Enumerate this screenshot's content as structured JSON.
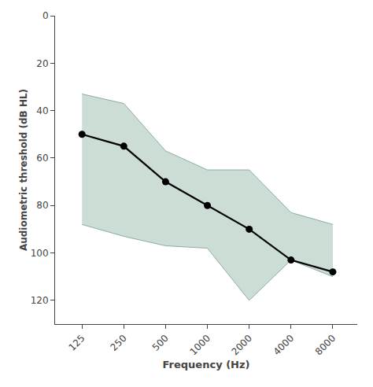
{
  "chart_data": {
    "type": "line",
    "xlabel": "Frequency (Hz)",
    "ylabel": "Audiometric threshold (dB HL)",
    "x": [
      125,
      250,
      500,
      1000,
      2000,
      4000,
      8000
    ],
    "series": [
      {
        "type": "band",
        "upper": [
          33,
          37,
          57,
          65,
          65,
          83,
          88
        ],
        "lower": [
          88,
          93,
          97,
          98,
          120,
          103,
          110
        ],
        "color": "#ccddd6",
        "edge_color": "#8aada4"
      },
      {
        "type": "line",
        "values": [
          50,
          55,
          70,
          80,
          90,
          103,
          108
        ],
        "color": "#000000",
        "marker": "circle"
      }
    ],
    "log": "x",
    "xlim": [
      80,
      12000
    ],
    "xticks": [
      125,
      250,
      500,
      1000,
      2000,
      4000,
      8000
    ],
    "ylim": [
      130,
      0
    ],
    "yticks": [
      0,
      20,
      40,
      60,
      80,
      100,
      120
    ],
    "grid": false
  }
}
